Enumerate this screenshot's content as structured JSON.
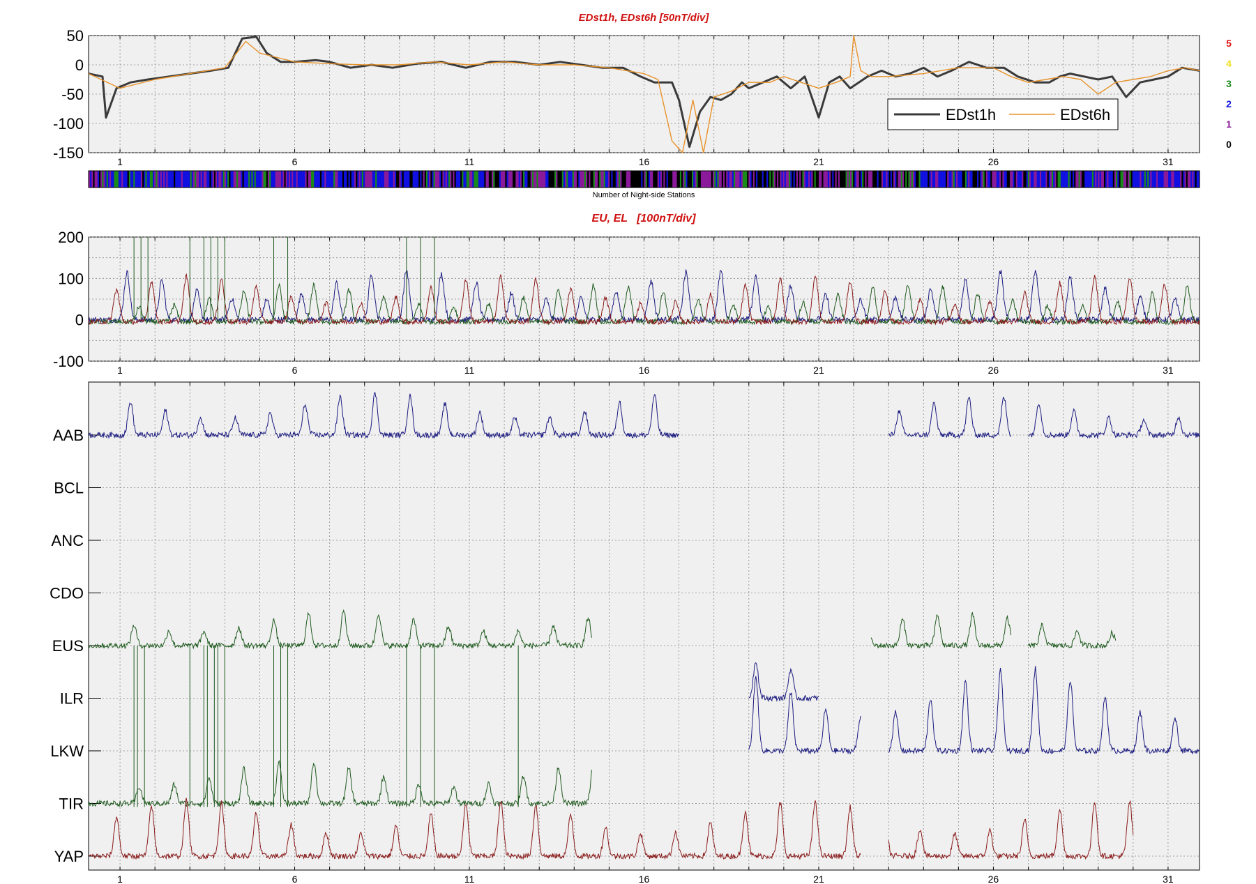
{
  "chart_data": [
    {
      "type": "line",
      "title": "EDst1h, EDst6h [50nT/div]",
      "ylim": [
        -150,
        50
      ],
      "yticks": [
        50,
        0,
        -50,
        -100,
        -150
      ],
      "xlim": [
        0.1,
        31.9
      ],
      "xticks": [
        1,
        6,
        11,
        16,
        21,
        26,
        31
      ],
      "grid": true,
      "legend": {
        "placement": "bottom-right",
        "entries": [
          "EDst1h",
          "EDst6h"
        ]
      },
      "series": [
        {
          "name": "EDst1h",
          "color": "#3a3a3a",
          "x": [
            0.1,
            0.5,
            0.6,
            0.9,
            1.3,
            1.8,
            2.4,
            3.0,
            3.6,
            4.1,
            4.5,
            4.9,
            5.2,
            5.6,
            6.0,
            6.6,
            7.0,
            7.6,
            8.2,
            8.8,
            9.5,
            10.2,
            10.9,
            11.6,
            12.3,
            13.0,
            13.6,
            14.2,
            14.8,
            15.4,
            15.9,
            16.3,
            16.8,
            17.0,
            17.3,
            17.6,
            17.9,
            18.2,
            18.5,
            18.8,
            19.0,
            19.4,
            19.8,
            20.2,
            20.6,
            21.0,
            21.3,
            21.6,
            21.9,
            22.4,
            22.8,
            23.2,
            23.6,
            24.0,
            24.4,
            24.8,
            25.3,
            25.8,
            26.3,
            26.7,
            27.2,
            27.6,
            27.9,
            28.2,
            28.6,
            29.0,
            29.4,
            29.8,
            30.2,
            30.6,
            31.0,
            31.4,
            31.9
          ],
          "y": [
            -15,
            -20,
            -90,
            -40,
            -30,
            -25,
            -20,
            -15,
            -10,
            -5,
            45,
            48,
            20,
            5,
            5,
            8,
            5,
            -5,
            0,
            -5,
            2,
            5,
            -5,
            5,
            5,
            0,
            5,
            0,
            -5,
            -5,
            -20,
            -30,
            -30,
            -60,
            -140,
            -80,
            -55,
            -60,
            -50,
            -30,
            -40,
            -30,
            -20,
            -40,
            -20,
            -90,
            -30,
            -20,
            -40,
            -20,
            -10,
            -20,
            -15,
            -5,
            -20,
            -10,
            5,
            -5,
            -5,
            -20,
            -30,
            -30,
            -20,
            -15,
            -20,
            -25,
            -20,
            -55,
            -30,
            -25,
            -20,
            -5,
            -10
          ]
        },
        {
          "name": "EDst6h",
          "color": "#e8922a",
          "x": [
            0.1,
            1.0,
            2.0,
            3.0,
            4.0,
            4.6,
            5.0,
            6.0,
            7.0,
            8.0,
            9.0,
            10.0,
            11.0,
            12.0,
            13.0,
            14.0,
            15.0,
            16.0,
            16.4,
            16.8,
            17.1,
            17.4,
            17.7,
            18.0,
            18.5,
            19.0,
            19.6,
            20.0,
            20.5,
            21.0,
            21.5,
            21.9,
            22.0,
            22.2,
            22.5,
            23.0,
            24.0,
            25.0,
            26.0,
            26.5,
            27.0,
            27.5,
            28.0,
            28.5,
            29.0,
            29.5,
            30.0,
            30.5,
            31.0,
            31.5,
            31.9
          ],
          "y": [
            -15,
            -40,
            -25,
            -15,
            -5,
            40,
            20,
            5,
            2,
            0,
            0,
            5,
            0,
            5,
            0,
            0,
            -5,
            -15,
            -25,
            -130,
            -150,
            -60,
            -150,
            -55,
            -45,
            -30,
            -30,
            -20,
            -30,
            -40,
            -30,
            -20,
            50,
            -10,
            -20,
            -20,
            -15,
            -5,
            -5,
            -20,
            -30,
            -25,
            -20,
            -25,
            -50,
            -30,
            -25,
            -20,
            -10,
            -5,
            -10
          ]
        }
      ]
    },
    {
      "type": "heatmap",
      "title": "Number of Night-side Stations",
      "scale": {
        "labels": [
          "5",
          "4",
          "3",
          "2",
          "1",
          "0"
        ],
        "colors": [
          "#e01010",
          "#f0e020",
          "#1a8a1a",
          "#1010e0",
          "#8a1a9a",
          "#000000"
        ]
      }
    },
    {
      "type": "line",
      "title": "EU, EL   [100nT/div]",
      "ylim": [
        -100,
        200
      ],
      "yticks": [
        200,
        100,
        0,
        -100
      ],
      "xlim": [
        0.1,
        31.9
      ],
      "xticks": [
        1,
        6,
        11,
        16,
        21,
        26,
        31
      ],
      "grid": true,
      "series": [
        {
          "color": "#1a1a80"
        },
        {
          "color": "#1e5a1e"
        },
        {
          "color": "#8a1a1a"
        }
      ]
    },
    {
      "type": "line",
      "xlim": [
        0.1,
        31.9
      ],
      "xticks": [
        1,
        6,
        11,
        16,
        21,
        26,
        31
      ],
      "grid": true,
      "stations": [
        "AAB",
        "BCL",
        "ANC",
        "CDO",
        "EUS",
        "ILR",
        "LKW",
        "TIR",
        "YAP"
      ],
      "series": [
        {
          "name": "AAB",
          "color": "#1a1a80"
        },
        {
          "name": "EUS",
          "color": "#1e5a1e"
        },
        {
          "name": "ILR",
          "color": "#1a1a80"
        },
        {
          "name": "TIR",
          "color": "#1e5a1e"
        },
        {
          "name": "YAP",
          "color": "#8a1a1a"
        }
      ]
    }
  ]
}
